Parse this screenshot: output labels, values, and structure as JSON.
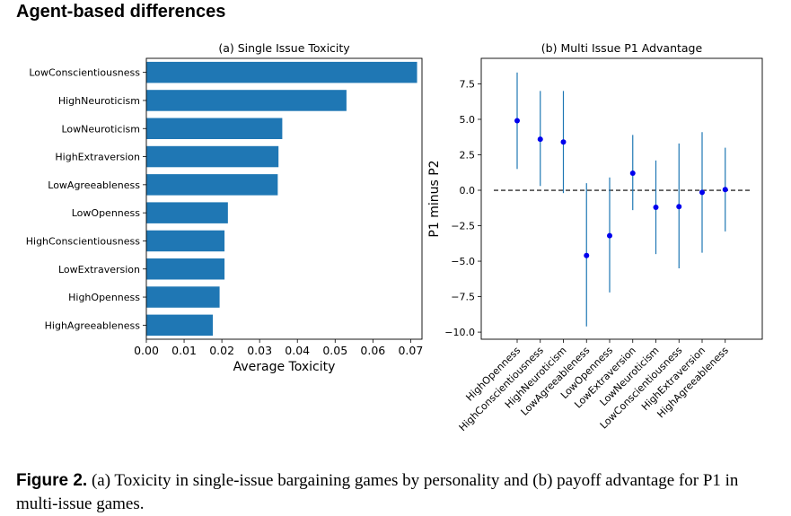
{
  "heading": "Agent-based differences",
  "caption": {
    "label": "Figure 2.",
    "text": " (a) Toxicity in single-issue bargaining games by personality and (b) payoff advantage for P1 in multi-issue games."
  },
  "chart_data": [
    {
      "type": "bar",
      "orientation": "horizontal",
      "title": "(a) Single Issue Toxicity",
      "xlabel": "Average Toxicity",
      "ylabel": "",
      "categories": [
        "LowConscientiousness",
        "HighNeuroticism",
        "LowNeuroticism",
        "HighExtraversion",
        "LowAgreeableness",
        "LowOpenness",
        "HighConscientiousness",
        "LowExtraversion",
        "HighOpenness",
        "HighAgreeableness"
      ],
      "values": [
        0.0717,
        0.053,
        0.036,
        0.035,
        0.0348,
        0.0216,
        0.0207,
        0.0207,
        0.0194,
        0.0176
      ],
      "xlim": [
        0,
        0.073
      ],
      "xticks": [
        0.0,
        0.01,
        0.02,
        0.03,
        0.04,
        0.05,
        0.06,
        0.07
      ],
      "xtick_labels": [
        "0.00",
        "0.01",
        "0.02",
        "0.03",
        "0.04",
        "0.05",
        "0.06",
        "0.07"
      ],
      "color": "#1f77b4",
      "grid": false
    },
    {
      "type": "scatter",
      "subtype": "errorbar",
      "title": "(b) Multi Issue P1 Advantage",
      "xlabel": "",
      "ylabel": "P1 minus P2",
      "categories": [
        "HighOpenness",
        "HighConscientiousness",
        "HighNeuroticism",
        "LowAgreeableness",
        "LowOpenness",
        "LowExtraversion",
        "LowNeuroticism",
        "LowConscientiousness",
        "HighExtraversion",
        "HighAgreeableness"
      ],
      "values": [
        4.9,
        3.6,
        3.4,
        -4.6,
        -3.2,
        1.2,
        -1.2,
        -1.15,
        -0.15,
        0.05
      ],
      "lower": [
        1.5,
        0.3,
        -0.2,
        -9.6,
        -7.2,
        -1.4,
        -4.5,
        -5.5,
        -4.4,
        -2.9
      ],
      "upper": [
        8.3,
        7.0,
        7.0,
        0.5,
        0.9,
        3.9,
        2.1,
        3.3,
        4.1,
        3.0
      ],
      "ylim": [
        -10.5,
        9.3
      ],
      "yticks": [
        7.5,
        5.0,
        2.5,
        0.0,
        -2.5,
        -5.0,
        -7.5,
        -10.0
      ],
      "ytick_labels": [
        "7.5",
        "5.0",
        "2.5",
        "0.0",
        "−2.5",
        "−5.0",
        "−7.5",
        "−10.0"
      ],
      "reference_line": 0,
      "point_color": "#0000ee",
      "errorbar_color": "#1f77b4",
      "grid": false
    }
  ]
}
